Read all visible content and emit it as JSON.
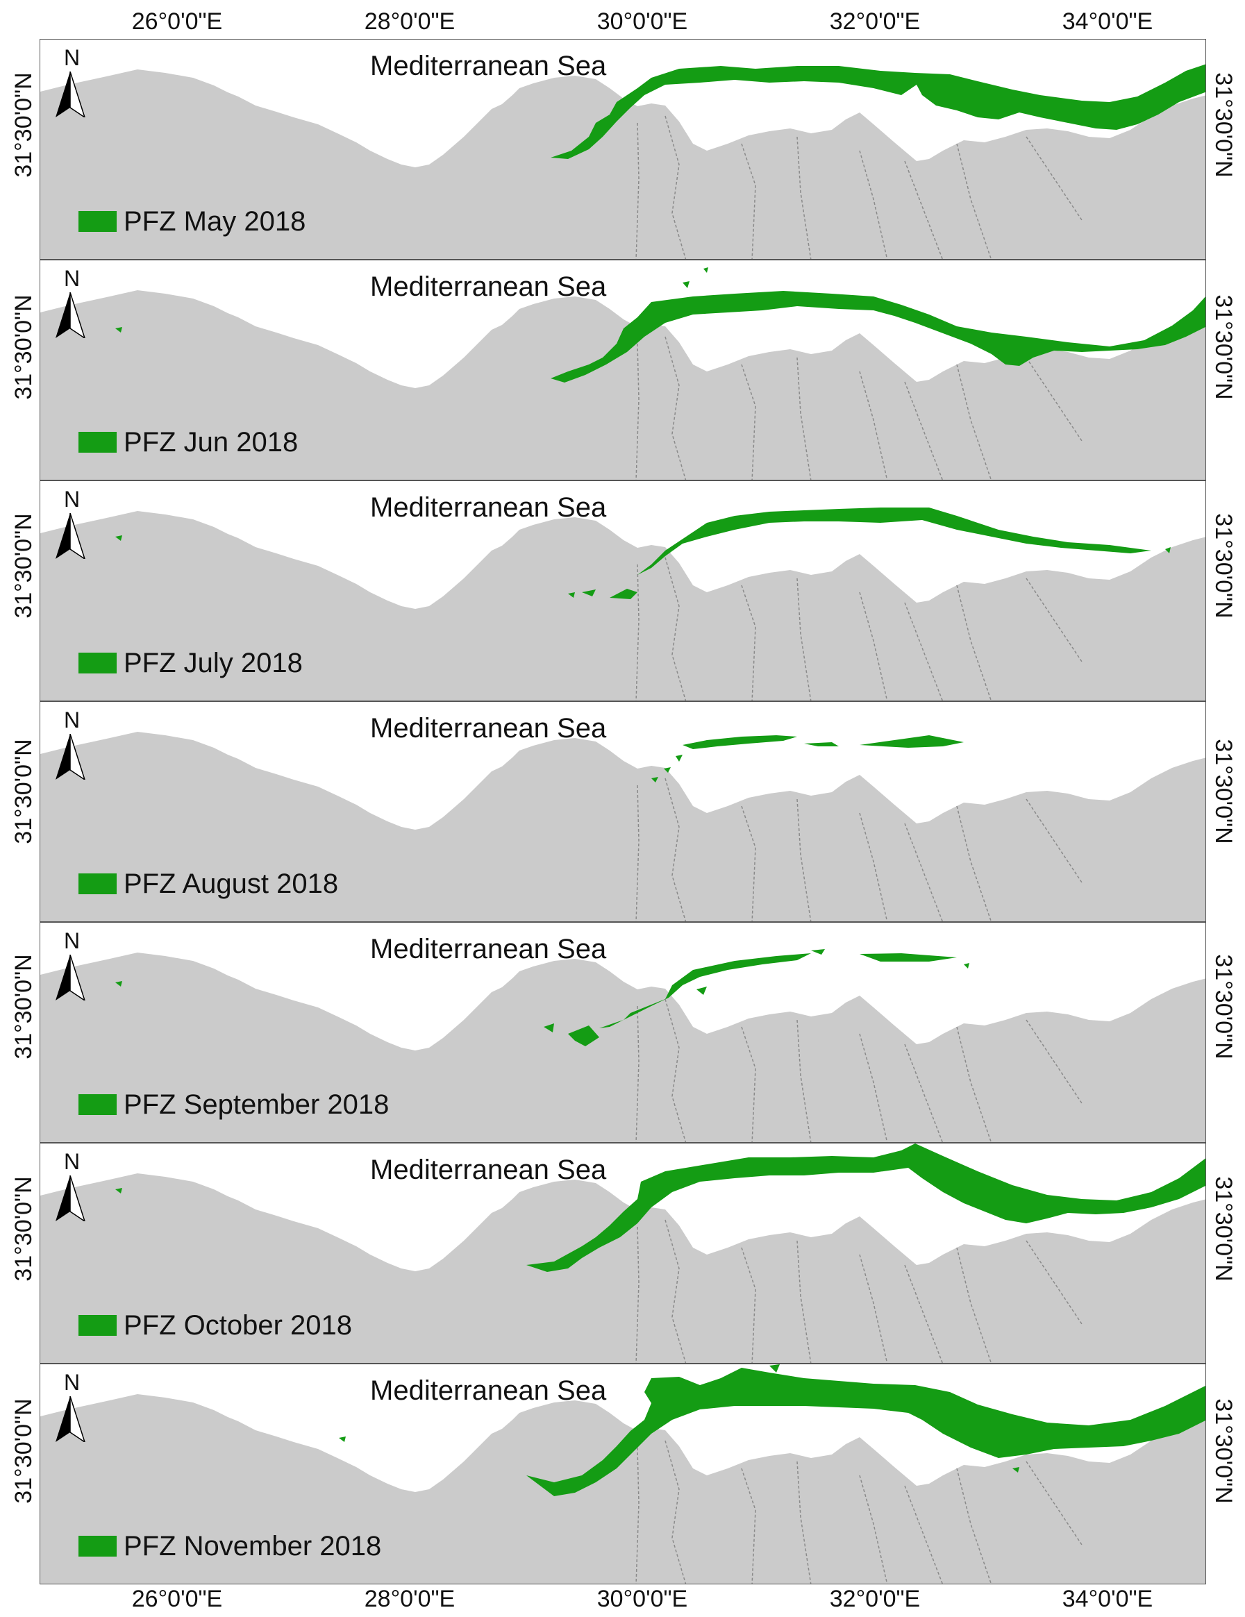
{
  "colors": {
    "land": "#cbcbcb",
    "pfz": "#149c14",
    "sea": "#ffffff",
    "border": "#8a8a8a"
  },
  "axes": {
    "top_lon": [
      "26°0'0\"E",
      "28°0'0\"E",
      "30°0'0\"E",
      "32°0'0\"E",
      "34°0'0\"E"
    ],
    "bottom_lon": [
      "26°0'0\"E",
      "28°0'0\"E",
      "30°0'0\"E",
      "32°0'0\"E",
      "34°0'0\"E"
    ],
    "lat": "31°30'0\"N"
  },
  "north_letter": "N",
  "sea_label": "Mediterranean Sea",
  "panels": [
    {
      "legend": "PFZ May 2018"
    },
    {
      "legend": "PFZ Jun 2018"
    },
    {
      "legend": "PFZ July 2018"
    },
    {
      "legend": "PFZ August 2018"
    },
    {
      "legend": "PFZ September 2018"
    },
    {
      "legend": "PFZ October 2018"
    },
    {
      "legend": "PFZ November 2018"
    }
  ]
}
